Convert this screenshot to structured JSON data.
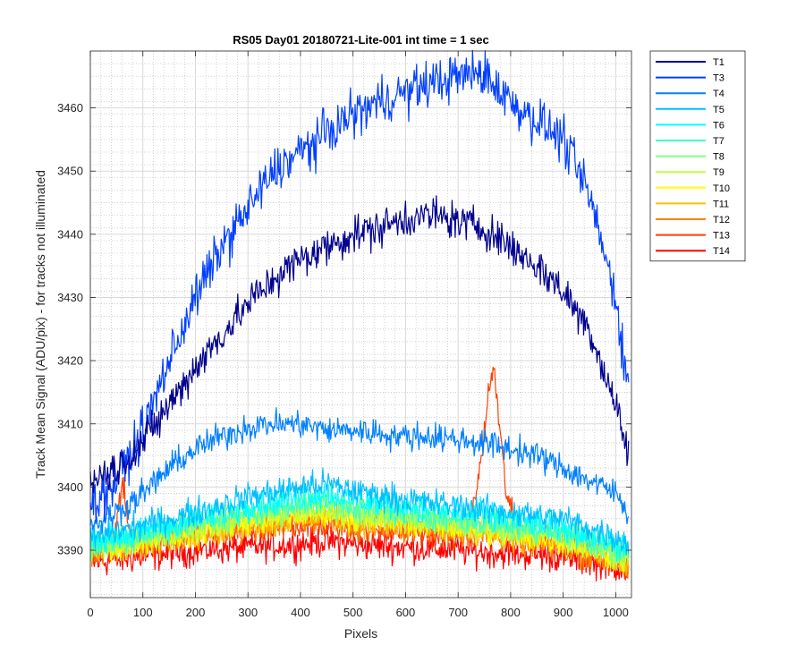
{
  "chart_data": {
    "type": "line",
    "title": "RS05 Day01 20180721-Lite-001 int time = 1 sec",
    "xlabel": "Pixels",
    "ylabel": "Track Mean Signal (ADU/pix) - for tracks not illuminated",
    "xlim": [
      0,
      1030
    ],
    "ylim": [
      3382.5,
      3469
    ],
    "xticks": [
      0,
      100,
      200,
      300,
      400,
      500,
      600,
      700,
      800,
      900,
      1000
    ],
    "yticks": [
      3390,
      3400,
      3410,
      3420,
      3430,
      3440,
      3450,
      3460
    ],
    "grid": "major and minor",
    "legend_position": "outside-right",
    "series": [
      {
        "name": "T1",
        "color": "#00008F",
        "x": [
          0,
          50,
          100,
          150,
          200,
          250,
          300,
          350,
          400,
          450,
          500,
          550,
          600,
          650,
          700,
          750,
          800,
          850,
          900,
          950,
          1000,
          1025
        ],
        "y": [
          3401,
          3403,
          3407,
          3413,
          3419,
          3424,
          3429,
          3433,
          3436,
          3438,
          3440,
          3441,
          3442.5,
          3443,
          3442,
          3441,
          3438,
          3435,
          3431,
          3425,
          3413,
          3405
        ],
        "noise": 2.5
      },
      {
        "name": "T3",
        "color": "#003FFF",
        "x": [
          0,
          50,
          100,
          150,
          200,
          250,
          300,
          350,
          400,
          450,
          500,
          550,
          600,
          650,
          700,
          750,
          800,
          850,
          900,
          950,
          1000,
          1025
        ],
        "y": [
          3397,
          3401,
          3409,
          3420,
          3430,
          3438,
          3444,
          3450,
          3453,
          3456,
          3459,
          3461,
          3462.5,
          3464,
          3465,
          3465.5,
          3461,
          3458,
          3455,
          3446,
          3430,
          3415
        ],
        "noise": 3
      },
      {
        "name": "T4",
        "color": "#0080FF",
        "x": [
          0,
          50,
          100,
          150,
          200,
          250,
          300,
          350,
          400,
          450,
          500,
          550,
          600,
          650,
          700,
          750,
          800,
          850,
          900,
          950,
          1000,
          1025
        ],
        "y": [
          3394,
          3396,
          3399,
          3403,
          3406,
          3408,
          3409.5,
          3410,
          3410,
          3409,
          3409,
          3408.5,
          3408,
          3408,
          3407.5,
          3407,
          3406,
          3405,
          3403,
          3401,
          3399,
          3396
        ],
        "noise": 1.8
      },
      {
        "name": "T5",
        "color": "#00BFFF",
        "x": [
          0,
          100,
          200,
          300,
          400,
          450,
          500,
          600,
          700,
          800,
          900,
          1000,
          1025
        ],
        "y": [
          3392,
          3394,
          3396,
          3398.5,
          3400,
          3400.5,
          3399.5,
          3398,
          3397,
          3396,
          3395,
          3392,
          3391
        ],
        "noise": 1.8
      },
      {
        "name": "T6",
        "color": "#00FFFF",
        "x": [
          0,
          100,
          200,
          300,
          400,
          450,
          500,
          600,
          700,
          800,
          900,
          1000,
          1025
        ],
        "y": [
          3391.5,
          3393,
          3395,
          3397,
          3398.5,
          3399,
          3398,
          3397,
          3396,
          3395,
          3393.5,
          3391,
          3390
        ],
        "noise": 1.8
      },
      {
        "name": "T7",
        "color": "#40FFBF",
        "x": [
          0,
          100,
          200,
          300,
          400,
          450,
          500,
          600,
          700,
          800,
          900,
          1000,
          1025
        ],
        "y": [
          3391,
          3392.5,
          3394.5,
          3396,
          3397.5,
          3398,
          3397,
          3396,
          3395,
          3394,
          3393,
          3390.5,
          3389.5
        ],
        "noise": 1.8
      },
      {
        "name": "T8",
        "color": "#80FF80",
        "x": [
          0,
          100,
          200,
          300,
          400,
          450,
          500,
          600,
          700,
          800,
          900,
          1000,
          1025
        ],
        "y": [
          3390.5,
          3392,
          3394,
          3395.5,
          3397,
          3397.5,
          3396.5,
          3395.5,
          3394.5,
          3393.5,
          3392.5,
          3390,
          3389
        ],
        "noise": 1.8
      },
      {
        "name": "T9",
        "color": "#BFFF40",
        "x": [
          0,
          100,
          200,
          300,
          400,
          450,
          500,
          600,
          700,
          800,
          900,
          1000,
          1025
        ],
        "y": [
          3390,
          3391.5,
          3393.5,
          3395,
          3396,
          3396.5,
          3395.5,
          3395,
          3394,
          3393,
          3392,
          3389.5,
          3388.5
        ],
        "noise": 1.8
      },
      {
        "name": "T10",
        "color": "#FFFF00",
        "x": [
          0,
          100,
          200,
          300,
          400,
          450,
          500,
          600,
          700,
          800,
          900,
          1000,
          1025
        ],
        "y": [
          3390,
          3391.5,
          3393,
          3394.5,
          3395.5,
          3396,
          3395,
          3394.5,
          3393.5,
          3392.5,
          3391.5,
          3389,
          3388
        ],
        "noise": 1.8
      },
      {
        "name": "T11",
        "color": "#FFBF00",
        "x": [
          0,
          100,
          200,
          300,
          400,
          450,
          500,
          600,
          700,
          800,
          900,
          1000,
          1025
        ],
        "y": [
          3390,
          3391,
          3392.5,
          3394,
          3395,
          3395.5,
          3394.5,
          3394,
          3393,
          3392,
          3391,
          3388.5,
          3387.5
        ],
        "noise": 1.8
      },
      {
        "name": "T12",
        "color": "#FF8000",
        "x": [
          0,
          100,
          200,
          300,
          400,
          450,
          500,
          600,
          700,
          800,
          900,
          1000,
          1025
        ],
        "y": [
          3390,
          3391,
          3392.5,
          3393.5,
          3394.5,
          3395,
          3394,
          3393.5,
          3393,
          3392,
          3390.5,
          3388,
          3387
        ],
        "noise": 2
      },
      {
        "name": "T13",
        "color": "#FF4000",
        "x": [
          0,
          45,
          55,
          62,
          70,
          80,
          100,
          200,
          300,
          400,
          450,
          500,
          600,
          700,
          725,
          745,
          760,
          768,
          776,
          790,
          810,
          830,
          900,
          1000,
          1025
        ],
        "y": [
          3389.5,
          3391,
          3398,
          3400.5,
          3395,
          3391,
          3391,
          3392.5,
          3393,
          3394,
          3394,
          3393.5,
          3393,
          3392,
          3394,
          3405,
          3416,
          3419,
          3412,
          3400,
          3393,
          3392,
          3391,
          3388,
          3387
        ],
        "noise": 1.8
      },
      {
        "name": "T14",
        "color": "#FF0000",
        "x": [
          0,
          100,
          200,
          300,
          400,
          450,
          500,
          600,
          700,
          800,
          900,
          1000,
          1025
        ],
        "y": [
          3388,
          3389,
          3390,
          3390.5,
          3391,
          3391.5,
          3391,
          3390.5,
          3390,
          3389.5,
          3389,
          3387.5,
          3386.5
        ],
        "noise": 2
      }
    ]
  }
}
